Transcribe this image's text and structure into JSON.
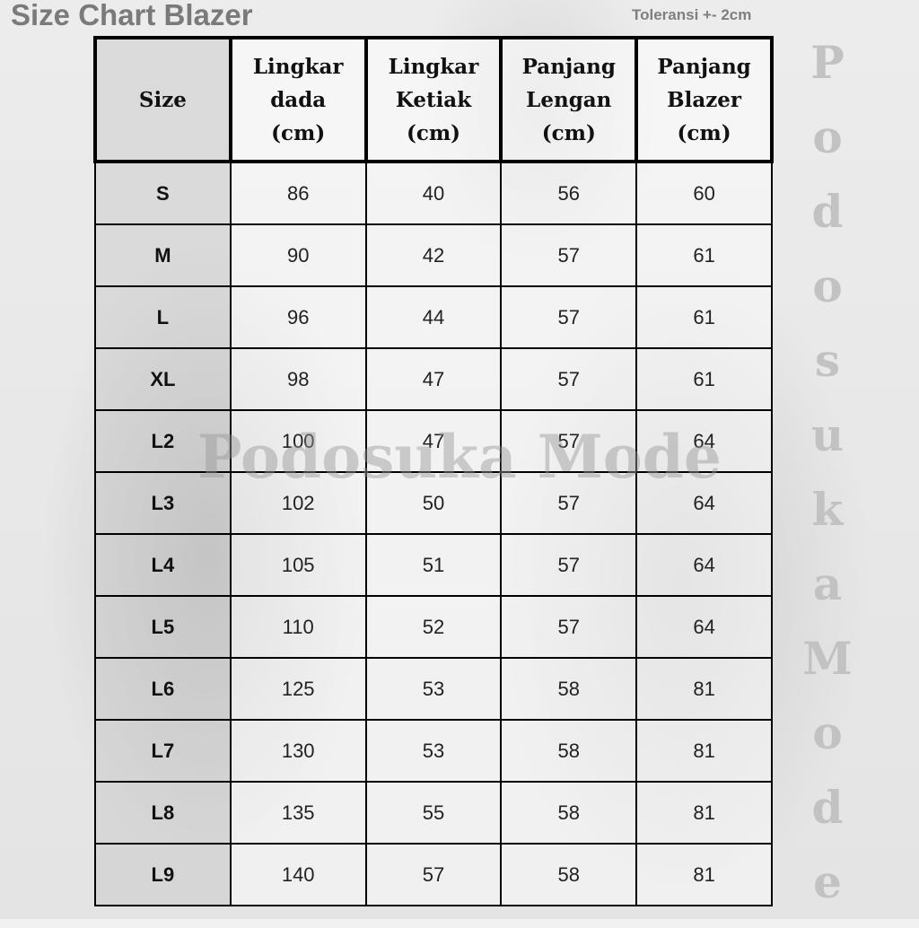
{
  "title": "Size Chart Blazer",
  "tolerance": "Toleransi +- 2cm",
  "watermark": "Podosuka Mode",
  "side_letters": [
    "P",
    "o",
    "d",
    "o",
    "s",
    "u",
    "k",
    "a",
    "M",
    "o",
    "d",
    "e"
  ],
  "headers": [
    [
      "Size"
    ],
    [
      "Lingkar",
      "dada",
      "(cm)"
    ],
    [
      "Lingkar",
      "Ketiak",
      "(cm)"
    ],
    [
      "Panjang",
      "Lengan",
      "(cm)"
    ],
    [
      "Panjang",
      "Blazer",
      "(cm)"
    ]
  ],
  "rows": [
    [
      "S",
      "86",
      "40",
      "56",
      "60"
    ],
    [
      "M",
      "90",
      "42",
      "57",
      "61"
    ],
    [
      "L",
      "96",
      "44",
      "57",
      "61"
    ],
    [
      "XL",
      "98",
      "47",
      "57",
      "61"
    ],
    [
      "L2",
      "100",
      "47",
      "57",
      "64"
    ],
    [
      "L3",
      "102",
      "50",
      "57",
      "64"
    ],
    [
      "L4",
      "105",
      "51",
      "57",
      "64"
    ],
    [
      "L5",
      "110",
      "52",
      "57",
      "64"
    ],
    [
      "L6",
      "125",
      "53",
      "58",
      "81"
    ],
    [
      "L7",
      "130",
      "53",
      "58",
      "81"
    ],
    [
      "L8",
      "135",
      "55",
      "58",
      "81"
    ],
    [
      "L9",
      "140",
      "57",
      "58",
      "81"
    ]
  ]
}
